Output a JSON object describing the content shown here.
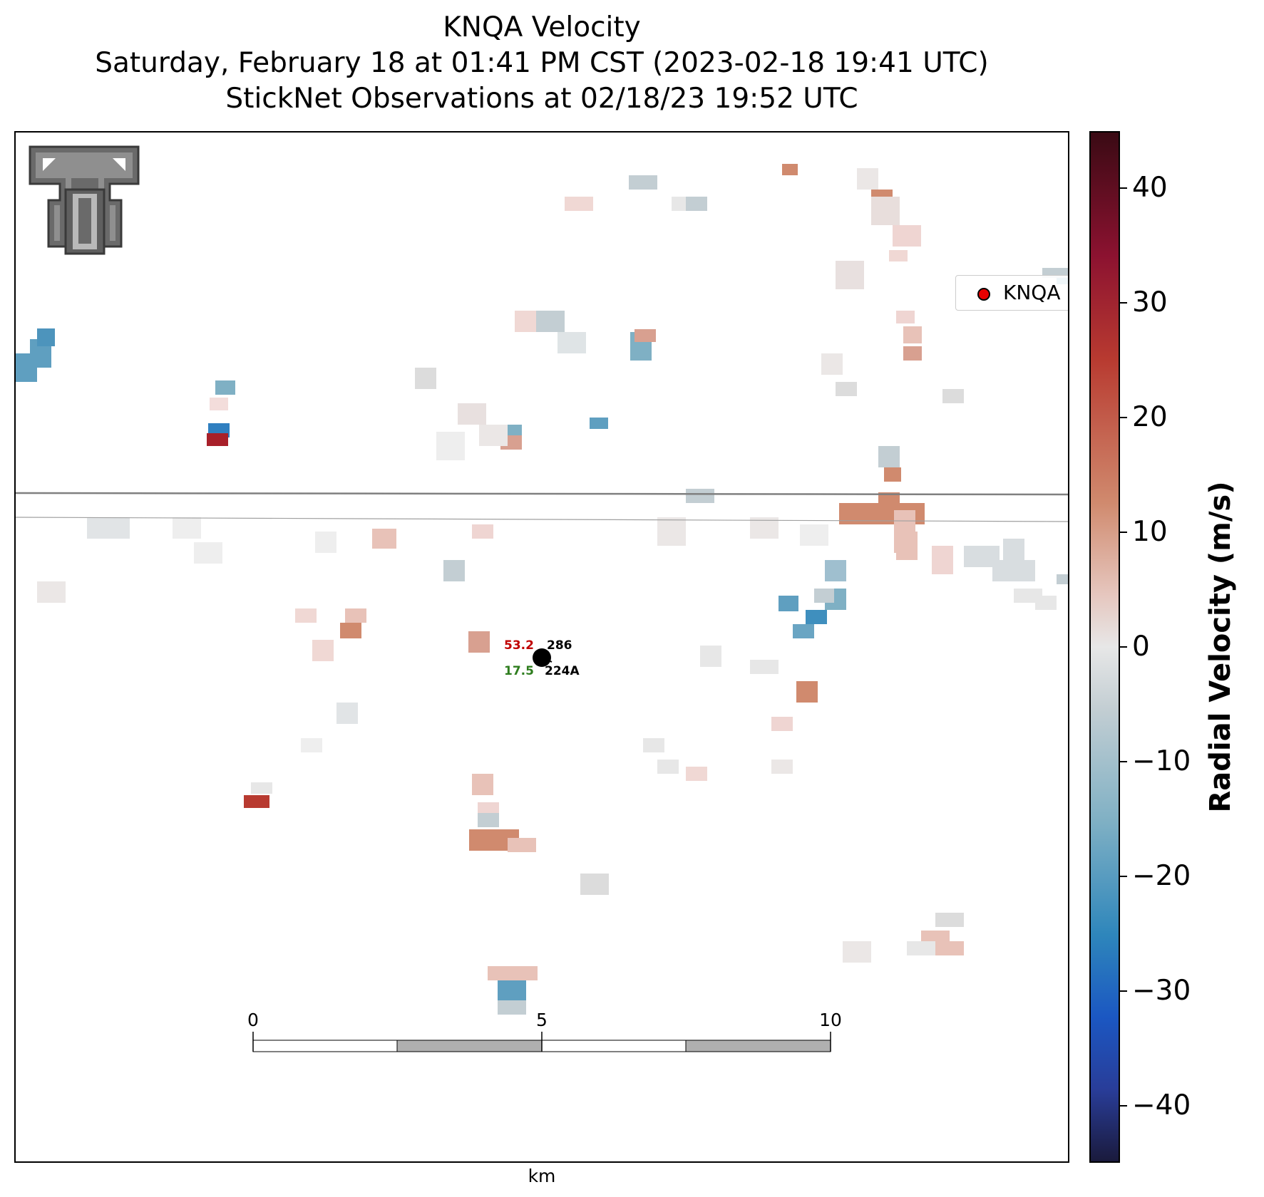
{
  "title": {
    "line1": "KNQA Velocity",
    "line2": "Saturday, February 18 at 01:41 PM CST (2023-02-18 19:41 UTC)",
    "line3": "StickNet Observations at 02/18/23 19:52 UTC"
  },
  "legend": {
    "label": "KNQA",
    "marker_color": "#e80000"
  },
  "colorbar": {
    "title": "Radial Velocity (m/s)",
    "min": -45,
    "max": 45,
    "ticks": [
      "40",
      "30",
      "20",
      "10",
      "0",
      "−10",
      "−20",
      "−30",
      "−40"
    ],
    "tick_values": [
      40,
      30,
      20,
      10,
      0,
      -10,
      -20,
      -30,
      -40
    ]
  },
  "station": {
    "temperature": "53.2",
    "temperature_color": "#c00000",
    "dewpoint": "17.5",
    "dewpoint_color": "#2e7d1e",
    "pressure": "286",
    "station_id": "224A"
  },
  "scale_bar": {
    "labels": [
      "0",
      "5",
      "10"
    ],
    "unit": "km"
  },
  "logo": {
    "name": "Texas Tech Double T"
  },
  "reference_lines": {
    "count": 2
  }
}
